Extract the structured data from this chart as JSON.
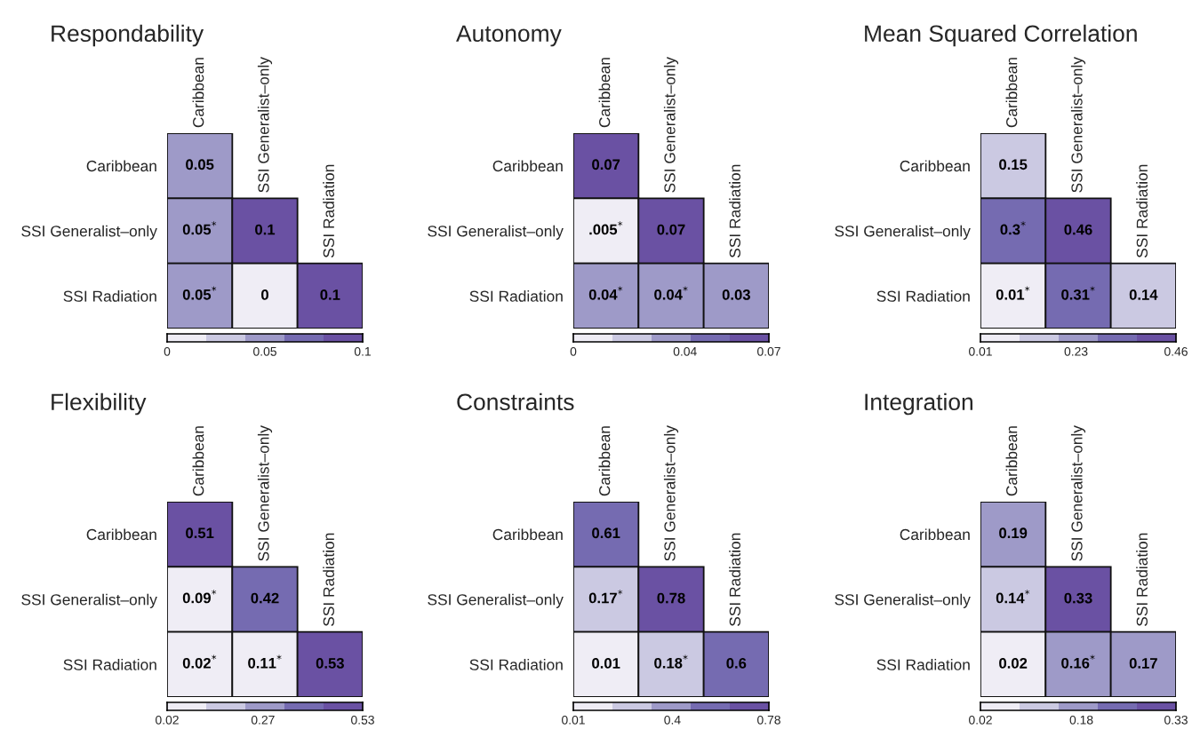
{
  "chart_data": [
    {
      "type": "heatmap",
      "title": "Respondability",
      "categories": [
        "Caribbean",
        "SSI Generalist–only",
        "SSI Radiation"
      ],
      "y_categories": [
        "Caribbean",
        "SSI Generalist–only",
        "SSI Radiation"
      ],
      "cells": [
        [
          0.05,
          null,
          null
        ],
        [
          0.05,
          0.1,
          null
        ],
        [
          0.05,
          0,
          0.1
        ]
      ],
      "cell_labels": [
        [
          "0.05",
          null,
          null
        ],
        [
          "0.05$^{*}$",
          "0.1",
          null
        ],
        [
          "0.05$^{*}$",
          "0",
          "0.1"
        ]
      ],
      "clim": [
        0,
        0.1
      ],
      "cticks": [
        0,
        0.05,
        0.1
      ]
    },
    {
      "type": "heatmap",
      "title": "Autonomy",
      "categories": [
        "Caribbean",
        "SSI Generalist–only",
        "SSI Radiation"
      ],
      "y_categories": [
        "Caribbean",
        "SSI Generalist–only",
        "SSI Radiation"
      ],
      "cells": [
        [
          0.07,
          null,
          null
        ],
        [
          0.005,
          0.07,
          null
        ],
        [
          0.04,
          0.04,
          0.03
        ]
      ],
      "cell_labels": [
        [
          "0.07",
          null,
          null
        ],
        [
          ".005$^{*}$",
          "0.07",
          null
        ],
        [
          "0.04$^{*}$",
          "0.04$^{*}$",
          "0.03"
        ]
      ],
      "clim": [
        0,
        0.07
      ],
      "cticks": [
        0,
        0.04,
        0.07
      ]
    },
    {
      "type": "heatmap",
      "title": "Mean Squared Correlation",
      "categories": [
        "Caribbean",
        "SSI Generalist–only",
        "SSI Radiation"
      ],
      "y_categories": [
        "Caribbean",
        "SSI Generalist–only",
        "SSI Radiation"
      ],
      "cells": [
        [
          0.15,
          null,
          null
        ],
        [
          0.3,
          0.46,
          null
        ],
        [
          0.01,
          0.31,
          0.14
        ]
      ],
      "cell_labels": [
        [
          "0.15",
          null,
          null
        ],
        [
          "0.3$^{*}$",
          "0.46",
          null
        ],
        [
          "0.01$^{*}$",
          "0.31$^{*}$",
          "0.14"
        ]
      ],
      "clim": [
        0.01,
        0.46
      ],
      "cticks": [
        0.01,
        0.23,
        0.46
      ]
    },
    {
      "type": "heatmap",
      "title": "Flexibility",
      "categories": [
        "Caribbean",
        "SSI Generalist–only",
        "SSI Radiation"
      ],
      "y_categories": [
        "Caribbean",
        "SSI Generalist–only",
        "SSI Radiation"
      ],
      "cells": [
        [
          0.51,
          null,
          null
        ],
        [
          0.09,
          0.42,
          null
        ],
        [
          0.02,
          0.11,
          0.53
        ]
      ],
      "cell_labels": [
        [
          "0.51",
          null,
          null
        ],
        [
          "0.09$^{*}$",
          "0.42",
          null
        ],
        [
          "0.02$^{*}$",
          "0.11$^{*}$",
          "0.53"
        ]
      ],
      "clim": [
        0.02,
        0.53
      ],
      "cticks": [
        0.02,
        0.27,
        0.53
      ]
    },
    {
      "type": "heatmap",
      "title": "Constraints",
      "categories": [
        "Caribbean",
        "SSI Generalist–only",
        "SSI Radiation"
      ],
      "y_categories": [
        "Caribbean",
        "SSI Generalist–only",
        "SSI Radiation"
      ],
      "cells": [
        [
          0.61,
          null,
          null
        ],
        [
          0.17,
          0.78,
          null
        ],
        [
          0.01,
          0.18,
          0.6
        ]
      ],
      "cell_labels": [
        [
          "0.61",
          null,
          null
        ],
        [
          "0.17$^{*}$",
          "0.78",
          null
        ],
        [
          "0.01",
          "0.18$^{*}$",
          "0.6"
        ]
      ],
      "clim": [
        0.01,
        0.78
      ],
      "cticks": [
        0.01,
        0.4,
        0.78
      ]
    },
    {
      "type": "heatmap",
      "title": "Integration",
      "categories": [
        "Caribbean",
        "SSI Generalist–only",
        "SSI Radiation"
      ],
      "y_categories": [
        "Caribbean",
        "SSI Generalist–only",
        "SSI Radiation"
      ],
      "cells": [
        [
          0.19,
          null,
          null
        ],
        [
          0.14,
          0.33,
          null
        ],
        [
          0.02,
          0.16,
          0.17
        ]
      ],
      "cell_labels": [
        [
          "0.19",
          null,
          null
        ],
        [
          "0.14$^{*}$",
          "0.33",
          null
        ],
        [
          "0.02",
          "0.16$^{*}$",
          "0.17"
        ]
      ],
      "clim": [
        0.02,
        0.33
      ],
      "cticks": [
        0.02,
        0.18,
        0.33
      ]
    }
  ]
}
